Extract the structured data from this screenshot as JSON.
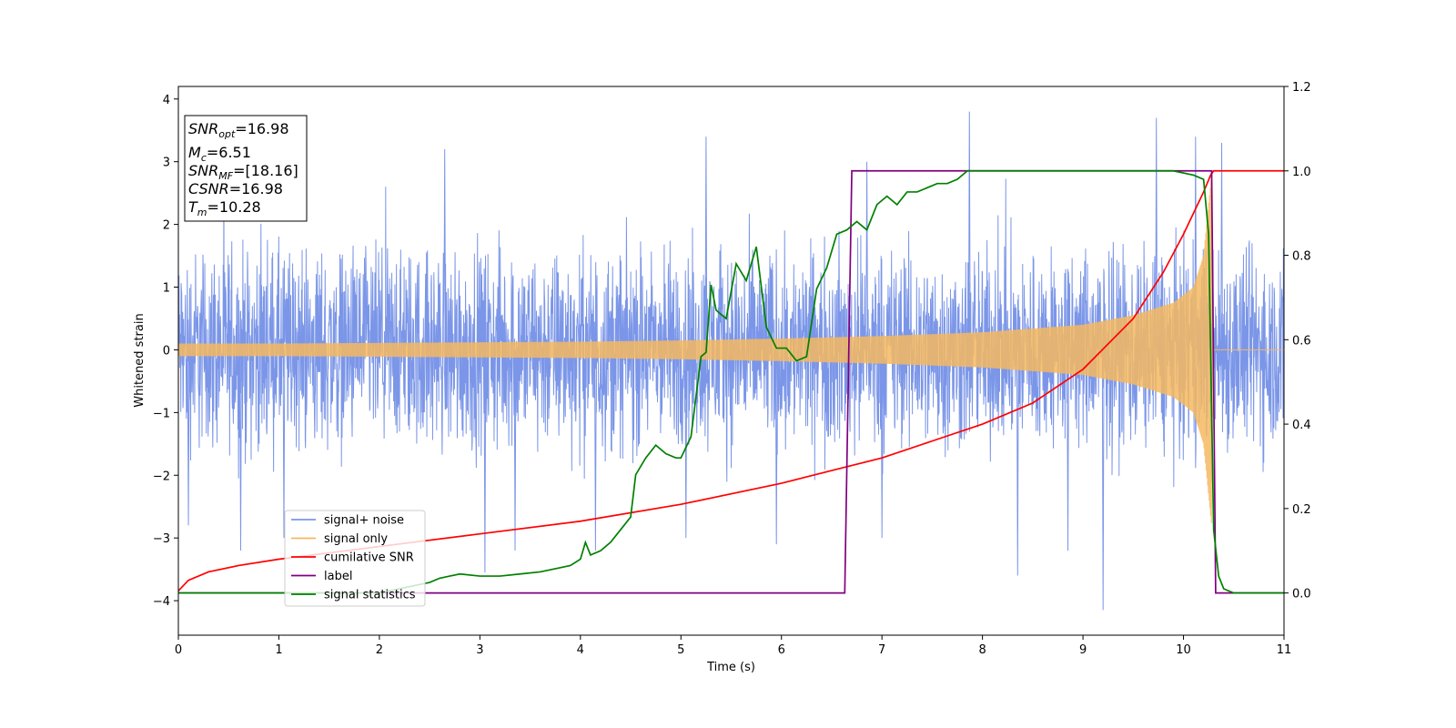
{
  "chart_data": {
    "type": "line",
    "xlabel": "Time (s)",
    "ylabel": "Whitened strain",
    "xlim": [
      0,
      11
    ],
    "ylim": [
      -4.55,
      4.2
    ],
    "y2lim": [
      -0.1,
      1.2
    ],
    "x_ticks": [
      0,
      1,
      2,
      3,
      4,
      5,
      6,
      7,
      8,
      9,
      10,
      11
    ],
    "y_ticks": [
      -4,
      -3,
      -2,
      -1,
      0,
      1,
      2,
      3,
      4
    ],
    "y2_ticks": [
      0.0,
      0.2,
      0.4,
      0.6,
      0.8,
      1.0,
      1.2
    ],
    "grid": false,
    "legend_position": "lower-left",
    "annotation": {
      "lines": [
        {
          "base": "SNR",
          "sub": "opt",
          "value": "=16.98"
        },
        {
          "base": "M",
          "sub": "c",
          "value": "=6.51"
        },
        {
          "base": "SNR",
          "sub": "MF",
          "value": "=[18.16]"
        },
        {
          "base": "CSNR",
          "sub": "",
          "value": "=16.98"
        },
        {
          "base": "T",
          "sub": "m",
          "value": "=10.28"
        }
      ]
    },
    "series": [
      {
        "name": "signal+ noise",
        "color": "#7b96e8",
        "axis": "left",
        "kind": "noise",
        "envelope": {
          "x": [
            0,
            11
          ],
          "low": [
            -2.3,
            -2.3
          ],
          "high": [
            2.3,
            2.3
          ]
        },
        "extremes": [
          [
            0.1,
            -2.8
          ],
          [
            0.62,
            -3.2
          ],
          [
            1.05,
            -3.0
          ],
          [
            2.65,
            3.2
          ],
          [
            3.05,
            -3.55
          ],
          [
            3.35,
            -3.2
          ],
          [
            4.15,
            -3.2
          ],
          [
            5.05,
            -3.0
          ],
          [
            5.25,
            3.4
          ],
          [
            5.95,
            -3.1
          ],
          [
            6.85,
            3.0
          ],
          [
            7.0,
            -3.0
          ],
          [
            7.87,
            3.8
          ],
          [
            8.35,
            -3.6
          ],
          [
            8.85,
            -3.2
          ],
          [
            9.2,
            -4.15
          ],
          [
            9.73,
            3.7
          ],
          [
            10.38,
            3.3
          ],
          [
            10.12,
            3.4
          ]
        ]
      },
      {
        "name": "signal only",
        "color": "#f5b960",
        "axis": "left",
        "kind": "chirp",
        "amplitude": {
          "x": [
            0,
            1,
            2,
            3,
            4,
            5,
            6,
            7,
            8,
            9,
            9.5,
            9.9,
            10.1,
            10.2,
            10.28,
            10.3,
            11
          ],
          "y": [
            0.1,
            0.1,
            0.11,
            0.12,
            0.13,
            0.15,
            0.18,
            0.22,
            0.28,
            0.4,
            0.55,
            0.75,
            1.0,
            1.5,
            2.8,
            0,
            0
          ]
        }
      },
      {
        "name": "cumilative SNR",
        "color": "#ff0000",
        "axis": "right",
        "x": [
          0,
          0.1,
          0.3,
          0.6,
          1,
          2,
          3,
          4,
          5,
          6,
          6.5,
          7,
          7.5,
          8,
          8.5,
          9,
          9.5,
          9.8,
          10,
          10.1,
          10.2,
          10.27,
          10.3,
          11
        ],
        "y": [
          0.005,
          0.03,
          0.05,
          0.065,
          0.08,
          0.11,
          0.14,
          0.17,
          0.21,
          0.26,
          0.29,
          0.32,
          0.36,
          0.4,
          0.45,
          0.53,
          0.65,
          0.76,
          0.85,
          0.9,
          0.95,
          0.99,
          1.0,
          1.0
        ]
      },
      {
        "name": "label",
        "color": "#800080",
        "axis": "right",
        "x": [
          0,
          6.63,
          6.7,
          10.28,
          10.32,
          11
        ],
        "y": [
          0,
          0,
          1,
          1,
          0,
          0
        ]
      },
      {
        "name": "signal statistics",
        "color": "#008000",
        "axis": "right",
        "x": [
          0,
          0.5,
          1,
          1.5,
          2,
          2.4,
          2.5,
          2.6,
          2.7,
          2.8,
          3,
          3.2,
          3.4,
          3.6,
          3.8,
          3.9,
          4.0,
          4.05,
          4.1,
          4.2,
          4.3,
          4.4,
          4.5,
          4.55,
          4.65,
          4.75,
          4.85,
          4.95,
          5.0,
          5.1,
          5.2,
          5.25,
          5.3,
          5.35,
          5.45,
          5.55,
          5.65,
          5.75,
          5.85,
          5.95,
          6.05,
          6.15,
          6.25,
          6.35,
          6.45,
          6.55,
          6.65,
          6.75,
          6.85,
          6.95,
          7.05,
          7.15,
          7.25,
          7.35,
          7.45,
          7.55,
          7.65,
          7.75,
          7.85,
          8.0,
          8.5,
          9.0,
          9.5,
          9.9,
          10.1,
          10.2,
          10.25,
          10.3,
          10.35,
          10.4,
          10.5,
          11
        ],
        "y": [
          0.0,
          0.0,
          0.0,
          0.0,
          0.0,
          0.02,
          0.025,
          0.035,
          0.04,
          0.045,
          0.04,
          0.04,
          0.045,
          0.05,
          0.06,
          0.065,
          0.08,
          0.12,
          0.09,
          0.1,
          0.12,
          0.15,
          0.18,
          0.28,
          0.32,
          0.35,
          0.33,
          0.32,
          0.32,
          0.37,
          0.56,
          0.57,
          0.73,
          0.67,
          0.65,
          0.78,
          0.74,
          0.82,
          0.63,
          0.58,
          0.58,
          0.55,
          0.56,
          0.72,
          0.77,
          0.85,
          0.86,
          0.88,
          0.86,
          0.92,
          0.94,
          0.92,
          0.95,
          0.95,
          0.96,
          0.97,
          0.97,
          0.98,
          1.0,
          1.0,
          1.0,
          1.0,
          1.0,
          1.0,
          0.99,
          0.98,
          0.85,
          0.15,
          0.04,
          0.01,
          0.0,
          0.0
        ]
      }
    ]
  }
}
